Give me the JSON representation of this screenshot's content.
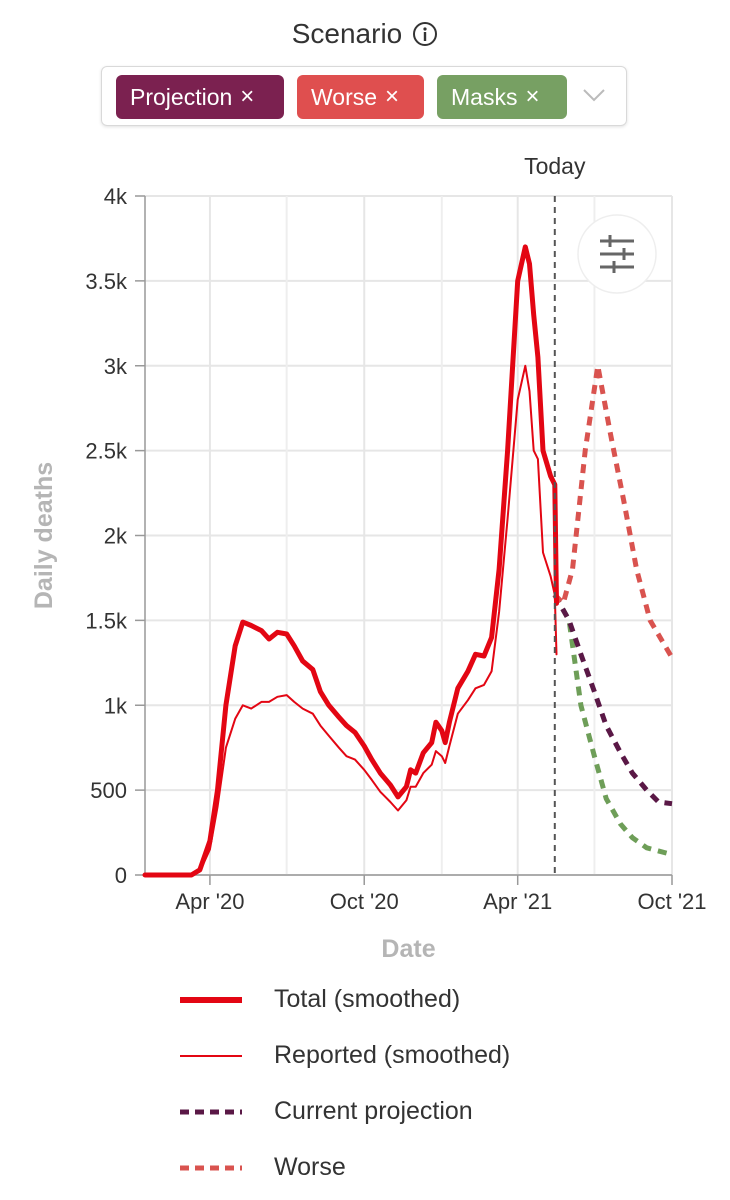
{
  "scenario": {
    "title": "Scenario",
    "chips": [
      {
        "label": "Projection",
        "remove": "×",
        "color": "#7b2150"
      },
      {
        "label": "Worse",
        "remove": "×",
        "color": "#df4f4f"
      },
      {
        "label": "Masks",
        "remove": "×",
        "color": "#77a063"
      }
    ]
  },
  "chart_data": {
    "type": "line",
    "xlabel": "Date",
    "ylabel": "Daily deaths",
    "today_label": "Today",
    "x_ticks": [
      "Apr '20",
      "Oct '20",
      "Apr '21",
      "Oct '21"
    ],
    "y_ticks": [
      "0",
      "500",
      "1k",
      "1.5k",
      "2k",
      "2.5k",
      "3k",
      "3.5k",
      "4k"
    ],
    "x_range": [
      "2020-01-15",
      "2021-10-01"
    ],
    "y_range": [
      0,
      4000
    ],
    "today": "2021-05-15",
    "grid": true,
    "series": [
      {
        "name": "Total (smoothed)",
        "color": "#e30613",
        "style": "thick",
        "points": [
          [
            "2020-01-15",
            0
          ],
          [
            "2020-03-10",
            0
          ],
          [
            "2020-03-20",
            30
          ],
          [
            "2020-04-01",
            200
          ],
          [
            "2020-04-10",
            500
          ],
          [
            "2020-04-20",
            1000
          ],
          [
            "2020-05-01",
            1350
          ],
          [
            "2020-05-10",
            1490
          ],
          [
            "2020-05-20",
            1470
          ],
          [
            "2020-06-01",
            1440
          ],
          [
            "2020-06-10",
            1390
          ],
          [
            "2020-06-20",
            1430
          ],
          [
            "2020-07-01",
            1420
          ],
          [
            "2020-07-10",
            1350
          ],
          [
            "2020-07-20",
            1260
          ],
          [
            "2020-08-01",
            1210
          ],
          [
            "2020-08-10",
            1080
          ],
          [
            "2020-08-20",
            1000
          ],
          [
            "2020-09-01",
            930
          ],
          [
            "2020-09-10",
            880
          ],
          [
            "2020-09-20",
            840
          ],
          [
            "2020-10-01",
            760
          ],
          [
            "2020-10-10",
            680
          ],
          [
            "2020-10-20",
            600
          ],
          [
            "2020-11-01",
            530
          ],
          [
            "2020-11-10",
            460
          ],
          [
            "2020-11-20",
            520
          ],
          [
            "2020-11-25",
            620
          ],
          [
            "2020-12-01",
            600
          ],
          [
            "2020-12-10",
            720
          ],
          [
            "2020-12-20",
            780
          ],
          [
            "2020-12-25",
            900
          ],
          [
            "2021-01-01",
            850
          ],
          [
            "2021-01-05",
            780
          ],
          [
            "2021-01-10",
            900
          ],
          [
            "2021-01-20",
            1100
          ],
          [
            "2021-02-01",
            1200
          ],
          [
            "2021-02-10",
            1300
          ],
          [
            "2021-02-20",
            1290
          ],
          [
            "2021-03-01",
            1400
          ],
          [
            "2021-03-10",
            1800
          ],
          [
            "2021-03-20",
            2500
          ],
          [
            "2021-04-01",
            3500
          ],
          [
            "2021-04-10",
            3700
          ],
          [
            "2021-04-15",
            3600
          ],
          [
            "2021-04-20",
            3300
          ],
          [
            "2021-04-25",
            3050
          ],
          [
            "2021-05-01",
            2500
          ],
          [
            "2021-05-10",
            2350
          ],
          [
            "2021-05-15",
            2300
          ],
          [
            "2021-05-17",
            1600
          ]
        ]
      },
      {
        "name": "Reported (smoothed)",
        "color": "#e30613",
        "style": "thin",
        "points": [
          [
            "2020-01-15",
            0
          ],
          [
            "2020-03-10",
            0
          ],
          [
            "2020-03-20",
            20
          ],
          [
            "2020-04-01",
            150
          ],
          [
            "2020-04-10",
            400
          ],
          [
            "2020-04-20",
            750
          ],
          [
            "2020-05-01",
            920
          ],
          [
            "2020-05-10",
            1000
          ],
          [
            "2020-05-20",
            980
          ],
          [
            "2020-06-01",
            1020
          ],
          [
            "2020-06-10",
            1020
          ],
          [
            "2020-06-20",
            1050
          ],
          [
            "2020-07-01",
            1060
          ],
          [
            "2020-07-10",
            1020
          ],
          [
            "2020-07-20",
            980
          ],
          [
            "2020-08-01",
            950
          ],
          [
            "2020-08-10",
            880
          ],
          [
            "2020-08-20",
            820
          ],
          [
            "2020-09-01",
            750
          ],
          [
            "2020-09-10",
            700
          ],
          [
            "2020-09-20",
            680
          ],
          [
            "2020-10-01",
            620
          ],
          [
            "2020-10-10",
            560
          ],
          [
            "2020-10-20",
            490
          ],
          [
            "2020-11-01",
            430
          ],
          [
            "2020-11-10",
            380
          ],
          [
            "2020-11-20",
            440
          ],
          [
            "2020-11-25",
            520
          ],
          [
            "2020-12-01",
            520
          ],
          [
            "2020-12-10",
            600
          ],
          [
            "2020-12-20",
            650
          ],
          [
            "2020-12-25",
            730
          ],
          [
            "2021-01-01",
            700
          ],
          [
            "2021-01-05",
            660
          ],
          [
            "2021-01-10",
            760
          ],
          [
            "2021-01-20",
            950
          ],
          [
            "2021-02-01",
            1030
          ],
          [
            "2021-02-10",
            1100
          ],
          [
            "2021-02-20",
            1120
          ],
          [
            "2021-03-01",
            1200
          ],
          [
            "2021-03-10",
            1550
          ],
          [
            "2021-03-20",
            2100
          ],
          [
            "2021-04-01",
            2800
          ],
          [
            "2021-04-10",
            3000
          ],
          [
            "2021-04-15",
            2850
          ],
          [
            "2021-04-20",
            2500
          ],
          [
            "2021-04-25",
            2450
          ],
          [
            "2021-05-01",
            1900
          ],
          [
            "2021-05-10",
            1760
          ],
          [
            "2021-05-15",
            1650
          ],
          [
            "2021-05-17",
            1300
          ]
        ]
      },
      {
        "name": "Current projection",
        "color": "#5a1846",
        "style": "dashed",
        "points": [
          [
            "2021-05-15",
            1650
          ],
          [
            "2021-06-01",
            1500
          ],
          [
            "2021-06-15",
            1300
          ],
          [
            "2021-07-01",
            1080
          ],
          [
            "2021-07-15",
            880
          ],
          [
            "2021-08-01",
            720
          ],
          [
            "2021-08-15",
            600
          ],
          [
            "2021-09-01",
            500
          ],
          [
            "2021-09-15",
            430
          ],
          [
            "2021-10-01",
            420
          ]
        ]
      },
      {
        "name": "Worse",
        "color": "#d9534f",
        "style": "dashed",
        "points": [
          [
            "2021-05-15",
            1650
          ],
          [
            "2021-05-25",
            1600
          ],
          [
            "2021-06-05",
            1800
          ],
          [
            "2021-06-20",
            2500
          ],
          [
            "2021-07-05",
            3000
          ],
          [
            "2021-07-20",
            2600
          ],
          [
            "2021-08-05",
            2200
          ],
          [
            "2021-08-20",
            1800
          ],
          [
            "2021-09-05",
            1500
          ],
          [
            "2021-10-01",
            1280
          ]
        ]
      },
      {
        "name": "Masks",
        "color": "#6e9e58",
        "style": "dashed",
        "points": [
          [
            "2021-05-15",
            1650
          ],
          [
            "2021-06-01",
            1500
          ],
          [
            "2021-06-15",
            1000
          ],
          [
            "2021-07-01",
            700
          ],
          [
            "2021-07-15",
            450
          ],
          [
            "2021-08-01",
            300
          ],
          [
            "2021-08-15",
            220
          ],
          [
            "2021-09-01",
            160
          ],
          [
            "2021-10-01",
            120
          ]
        ]
      }
    ]
  },
  "legend": [
    {
      "label": "Total (smoothed)",
      "color": "#e30613",
      "style": "thick"
    },
    {
      "label": "Reported (smoothed)",
      "color": "#e30613",
      "style": "thin"
    },
    {
      "label": "Current projection",
      "color": "#5a1846",
      "style": "dashed"
    },
    {
      "label": "Worse",
      "color": "#d9534f",
      "style": "dashed"
    }
  ],
  "settings_icon": "sliders-icon"
}
